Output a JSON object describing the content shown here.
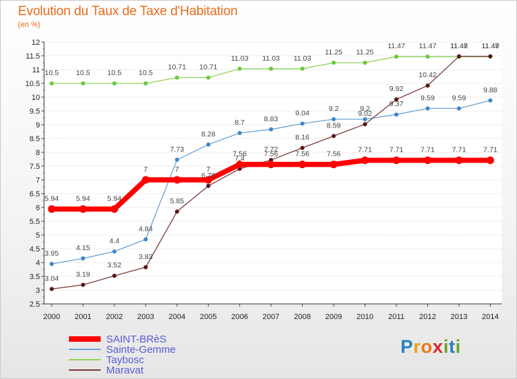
{
  "title": "Evolution du Taux de Taxe d'Habitation",
  "unit": "(en %)",
  "logo": {
    "text": "Proxiti",
    "letters": [
      "P",
      "r",
      "o",
      "x",
      "i",
      "t",
      "i"
    ],
    "colors": [
      "#2d7fc1",
      "#e8a114",
      "#e87a14",
      "#d12c2c",
      "#69a32a",
      "#2d7fc1",
      "#69a32a"
    ]
  },
  "chart_data": {
    "type": "line",
    "x": [
      2000,
      2001,
      2002,
      2003,
      2004,
      2005,
      2006,
      2007,
      2008,
      2009,
      2010,
      2011,
      2012,
      2013,
      2014
    ],
    "xticks": [
      "2000",
      "2001",
      "2002",
      "2003",
      "2004",
      "2005",
      "2006",
      "2007",
      "2008",
      "2009",
      "2010",
      "2011",
      "2012",
      "2013",
      "2014"
    ],
    "ylim": [
      2.5,
      12
    ],
    "yticks": [
      "2.5",
      "3",
      "3.5",
      "4",
      "4.5",
      "5",
      "5.5",
      "6",
      "6.5",
      "7",
      "7.5",
      "8",
      "8.5",
      "9",
      "9.5",
      "10",
      "10.5",
      "11",
      "11.5",
      "12"
    ],
    "grid": "horizontal dotted",
    "legend_position": "bottom-left",
    "series": [
      {
        "name": "SAINT-BRèS",
        "color": "#ff0000",
        "marker": "#ff0000",
        "width": 7.5,
        "values": [
          5.94,
          5.94,
          5.94,
          7,
          7,
          7,
          7.56,
          7.56,
          7.56,
          7.56,
          7.71,
          7.71,
          7.71,
          7.71,
          7.71
        ],
        "labels": [
          "5.94",
          "5.94",
          "5.94",
          "7",
          "7",
          "7",
          "7.56",
          "7.56",
          "7.56",
          "7.56",
          "7.71",
          "7.71",
          "7.71",
          "7.71",
          "7.71"
        ]
      },
      {
        "name": "Sainte-Gemme",
        "color": "#6aa3d4",
        "marker": "#3f86c8",
        "width": 1.3,
        "values": [
          3.95,
          4.15,
          4.4,
          4.84,
          7.73,
          8.28,
          8.7,
          8.83,
          9.04,
          9.2,
          9.2,
          9.37,
          9.59,
          9.59,
          9.88
        ],
        "labels": [
          "3.95",
          "4.15",
          "4.4",
          "4.84",
          "7.73",
          "8.28",
          "8.7",
          "8.83",
          "9.04",
          "9.2",
          "9.2",
          "9.37",
          "9.59",
          "9.59",
          "9.88"
        ]
      },
      {
        "name": "Taybosc",
        "color": "#8fd45a",
        "marker": "#6cc83a",
        "width": 1.3,
        "values": [
          10.5,
          10.5,
          10.5,
          10.5,
          10.71,
          10.71,
          11.03,
          11.03,
          11.03,
          11.25,
          11.25,
          11.47,
          11.47,
          11.47,
          11.47
        ],
        "labels": [
          "10.5",
          "10.5",
          "10.5",
          "10.5",
          "10.71",
          "10.71",
          "11.03",
          "11.03",
          "11.03",
          "11.25",
          "11.25",
          "11.47",
          "11.47",
          "11.47",
          "11.47"
        ]
      },
      {
        "name": "Maravat",
        "color": "#7a3a3a",
        "marker": "#5a1515",
        "width": 1.3,
        "values": [
          3.04,
          3.19,
          3.52,
          3.83,
          5.85,
          6.78,
          7.4,
          7.72,
          8.16,
          8.59,
          9.02,
          9.92,
          10.42,
          11.48,
          11.48
        ],
        "labels": [
          "3.04",
          "3.19",
          "3.52",
          "3.83",
          "5.85",
          "6.78",
          "7.4",
          "7.72",
          "8.16",
          "8.59",
          "9.02",
          "9.92",
          "10.42",
          "11.48",
          "11.48"
        ]
      }
    ]
  }
}
